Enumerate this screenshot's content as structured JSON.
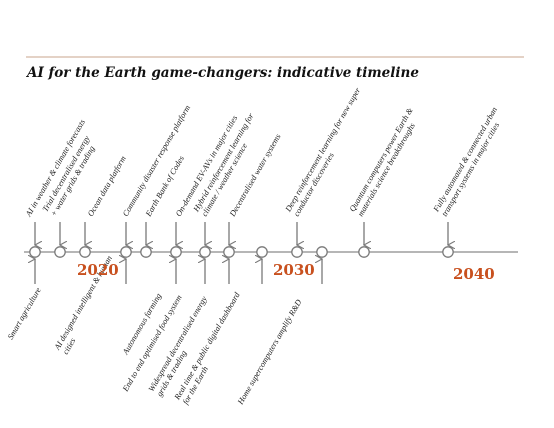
{
  "title": "AI for the Earth game-changers: indicative timeline",
  "colors": {
    "rule": "#c9a48e",
    "axis": "#8a8a8a",
    "node_stroke": "#7a7a7a",
    "year": "#c8501e",
    "text": "#222222"
  },
  "years": [
    "2020",
    "2030",
    "2040"
  ],
  "above": [
    [
      "AI in weather & climate forecasts"
    ],
    [
      "Trial decentralised energy",
      "+ water grids & trading"
    ],
    [
      "Ocean data platform"
    ],
    [
      "Community disaster response platform"
    ],
    [
      "Earth Bank of Codes"
    ],
    [
      "On-demand EV-AVs in major cities"
    ],
    [
      "Hybrid reinforcement learning for",
      "climate / weather science"
    ],
    [
      "Decentralised water systems"
    ],
    [
      "Deep reinforcement learning for new super",
      "conductor discoveries"
    ],
    [
      "Quantum computers power Earth &",
      "materials science breakthroughs"
    ],
    [
      "Fully automated & connected urban",
      "transport systems in major cities"
    ]
  ],
  "below": [
    [
      "Smart agriculture"
    ],
    [
      "AI designed intelligent & human",
      "cities"
    ],
    [
      "Autonomous farming"
    ],
    [
      "End to end optimised food system"
    ],
    [
      "Widespread decentralised energy",
      "grids & trading"
    ],
    [
      "Real time & public digital dashboard",
      "for the Earth"
    ],
    [
      "Home supercomputers amplify R&D"
    ]
  ]
}
